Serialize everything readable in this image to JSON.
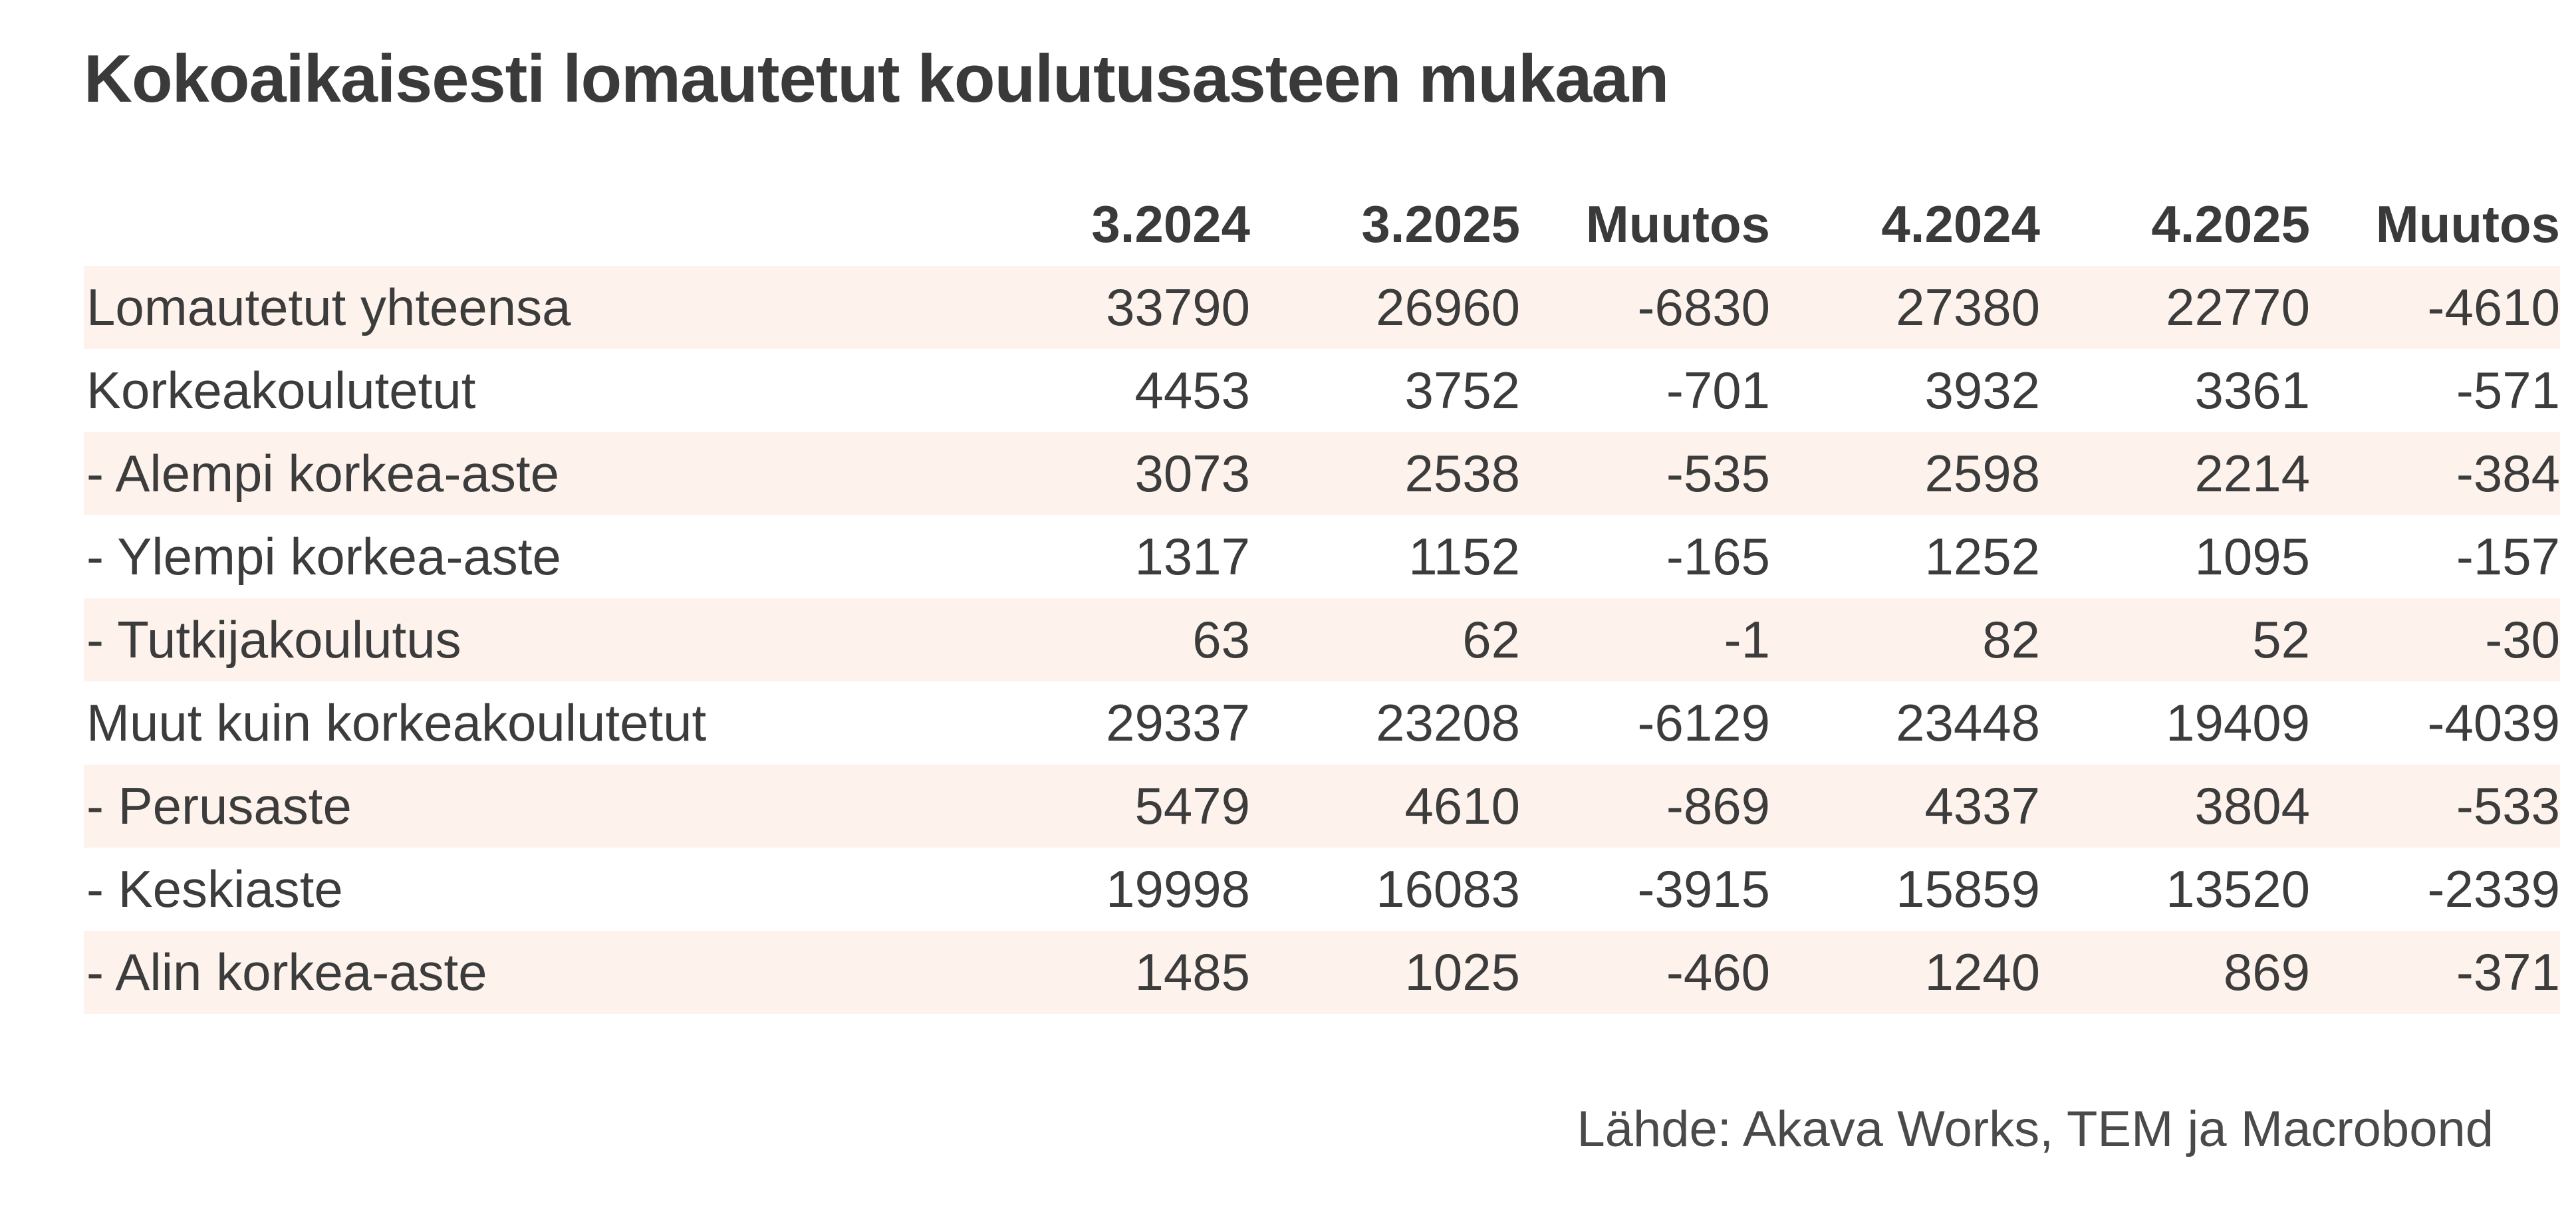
{
  "chart_data": {
    "type": "table",
    "title": "Kokoaikaisesti lomautetut koulutusasteen mukaan",
    "columns": [
      "",
      "3.2024",
      "3.2025",
      "Muutos",
      "4.2024",
      "4.2025",
      "Muutos"
    ],
    "rows": [
      {
        "label": "Lomautetut yhteensa",
        "values": [
          "33790",
          "26960",
          "-6830",
          "27380",
          "22770",
          "-4610"
        ]
      },
      {
        "label": "Korkeakoulutetut",
        "values": [
          "4453",
          "3752",
          "-701",
          "3932",
          "3361",
          "-571"
        ]
      },
      {
        "label": "- Alempi korkea-aste",
        "values": [
          "3073",
          "2538",
          "-535",
          "2598",
          "2214",
          "-384"
        ]
      },
      {
        "label": "- Ylempi korkea-aste",
        "values": [
          "1317",
          "1152",
          "-165",
          "1252",
          "1095",
          "-157"
        ]
      },
      {
        "label": "- Tutkijakoulutus",
        "values": [
          "63",
          "62",
          "-1",
          "82",
          "52",
          "-30"
        ]
      },
      {
        "label": "Muut kuin korkeakoulutetut",
        "values": [
          "29337",
          "23208",
          "-6129",
          "23448",
          "19409",
          "-4039"
        ]
      },
      {
        "label": "- Perusaste",
        "values": [
          "5479",
          "4610",
          "-869",
          "4337",
          "3804",
          "-533"
        ]
      },
      {
        "label": "- Keskiaste",
        "values": [
          "19998",
          "16083",
          "-3915",
          "15859",
          "13520",
          "-2339"
        ]
      },
      {
        "label": "- Alin korkea-aste",
        "values": [
          "1485",
          "1025",
          "-460",
          "1240",
          "869",
          "-371"
        ]
      }
    ],
    "source": "Lähde: Akava Works, TEM ja Macrobond",
    "stripe_color": "#fdf3ec"
  }
}
